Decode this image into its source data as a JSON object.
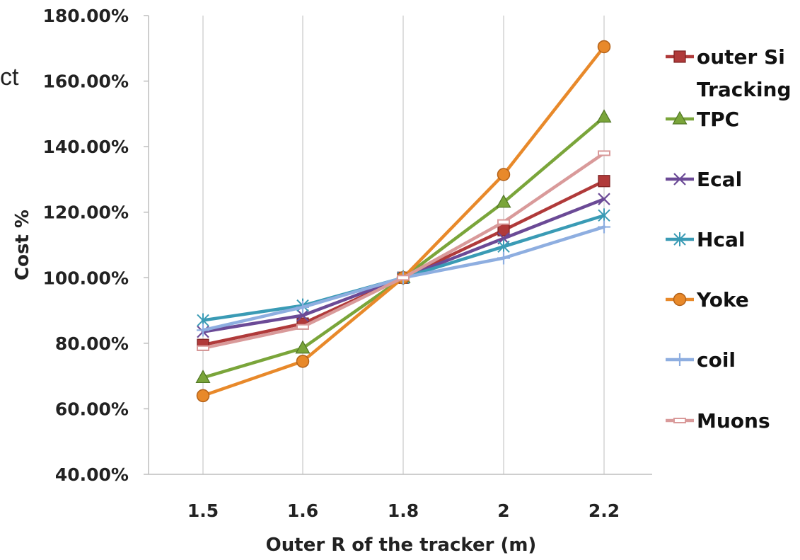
{
  "cropped_text": "ct",
  "chart_data": {
    "type": "line",
    "title": "",
    "xlabel": "Outer R of the tracker (m)",
    "ylabel": "Cost %",
    "categories": [
      "1.5",
      "1.6",
      "1.8",
      "2",
      "2.2"
    ],
    "ylim": [
      40,
      180
    ],
    "ytick_values": [
      40,
      60,
      80,
      100,
      120,
      140,
      160,
      180
    ],
    "ytick_labels": [
      "40.00%",
      "60.00%",
      "80.00%",
      "100.00%",
      "120.00%",
      "140.00%",
      "160.00%",
      "180.00%"
    ],
    "grid": "vertical lines at categories",
    "legend_position": "right",
    "series": [
      {
        "name": "outer Si Tracking",
        "legend_lines": [
          "outer Si",
          "Tracking"
        ],
        "color": "#b03a3a",
        "marker": "square",
        "values": [
          79.5,
          86,
          100,
          114.5,
          129.5
        ]
      },
      {
        "name": "TPC",
        "legend_lines": [
          "TPC"
        ],
        "color": "#7aa53a",
        "marker": "triangle",
        "values": [
          69.5,
          78.5,
          100,
          123,
          149
        ]
      },
      {
        "name": "Ecal",
        "legend_lines": [
          "Ecal"
        ],
        "color": "#6b4a96",
        "marker": "x",
        "values": [
          83.5,
          88.5,
          100,
          112,
          124
        ]
      },
      {
        "name": "Hcal",
        "legend_lines": [
          "Hcal"
        ],
        "color": "#3a9bb5",
        "marker": "star",
        "values": [
          87,
          91.5,
          100,
          109.5,
          119
        ]
      },
      {
        "name": "Yoke",
        "legend_lines": [
          "Yoke"
        ],
        "color": "#e8892a",
        "marker": "circle",
        "values": [
          64,
          74.5,
          100,
          131.5,
          170.5
        ]
      },
      {
        "name": "coil",
        "legend_lines": [
          "coil"
        ],
        "color": "#8eaee0",
        "marker": "plus",
        "values": [
          84,
          91,
          100,
          106,
          115.5
        ]
      },
      {
        "name": "Muons",
        "legend_lines": [
          "Muons"
        ],
        "color": "#d99a9a",
        "marker": "dash",
        "values": [
          78.5,
          85,
          100,
          117,
          138
        ]
      }
    ]
  }
}
